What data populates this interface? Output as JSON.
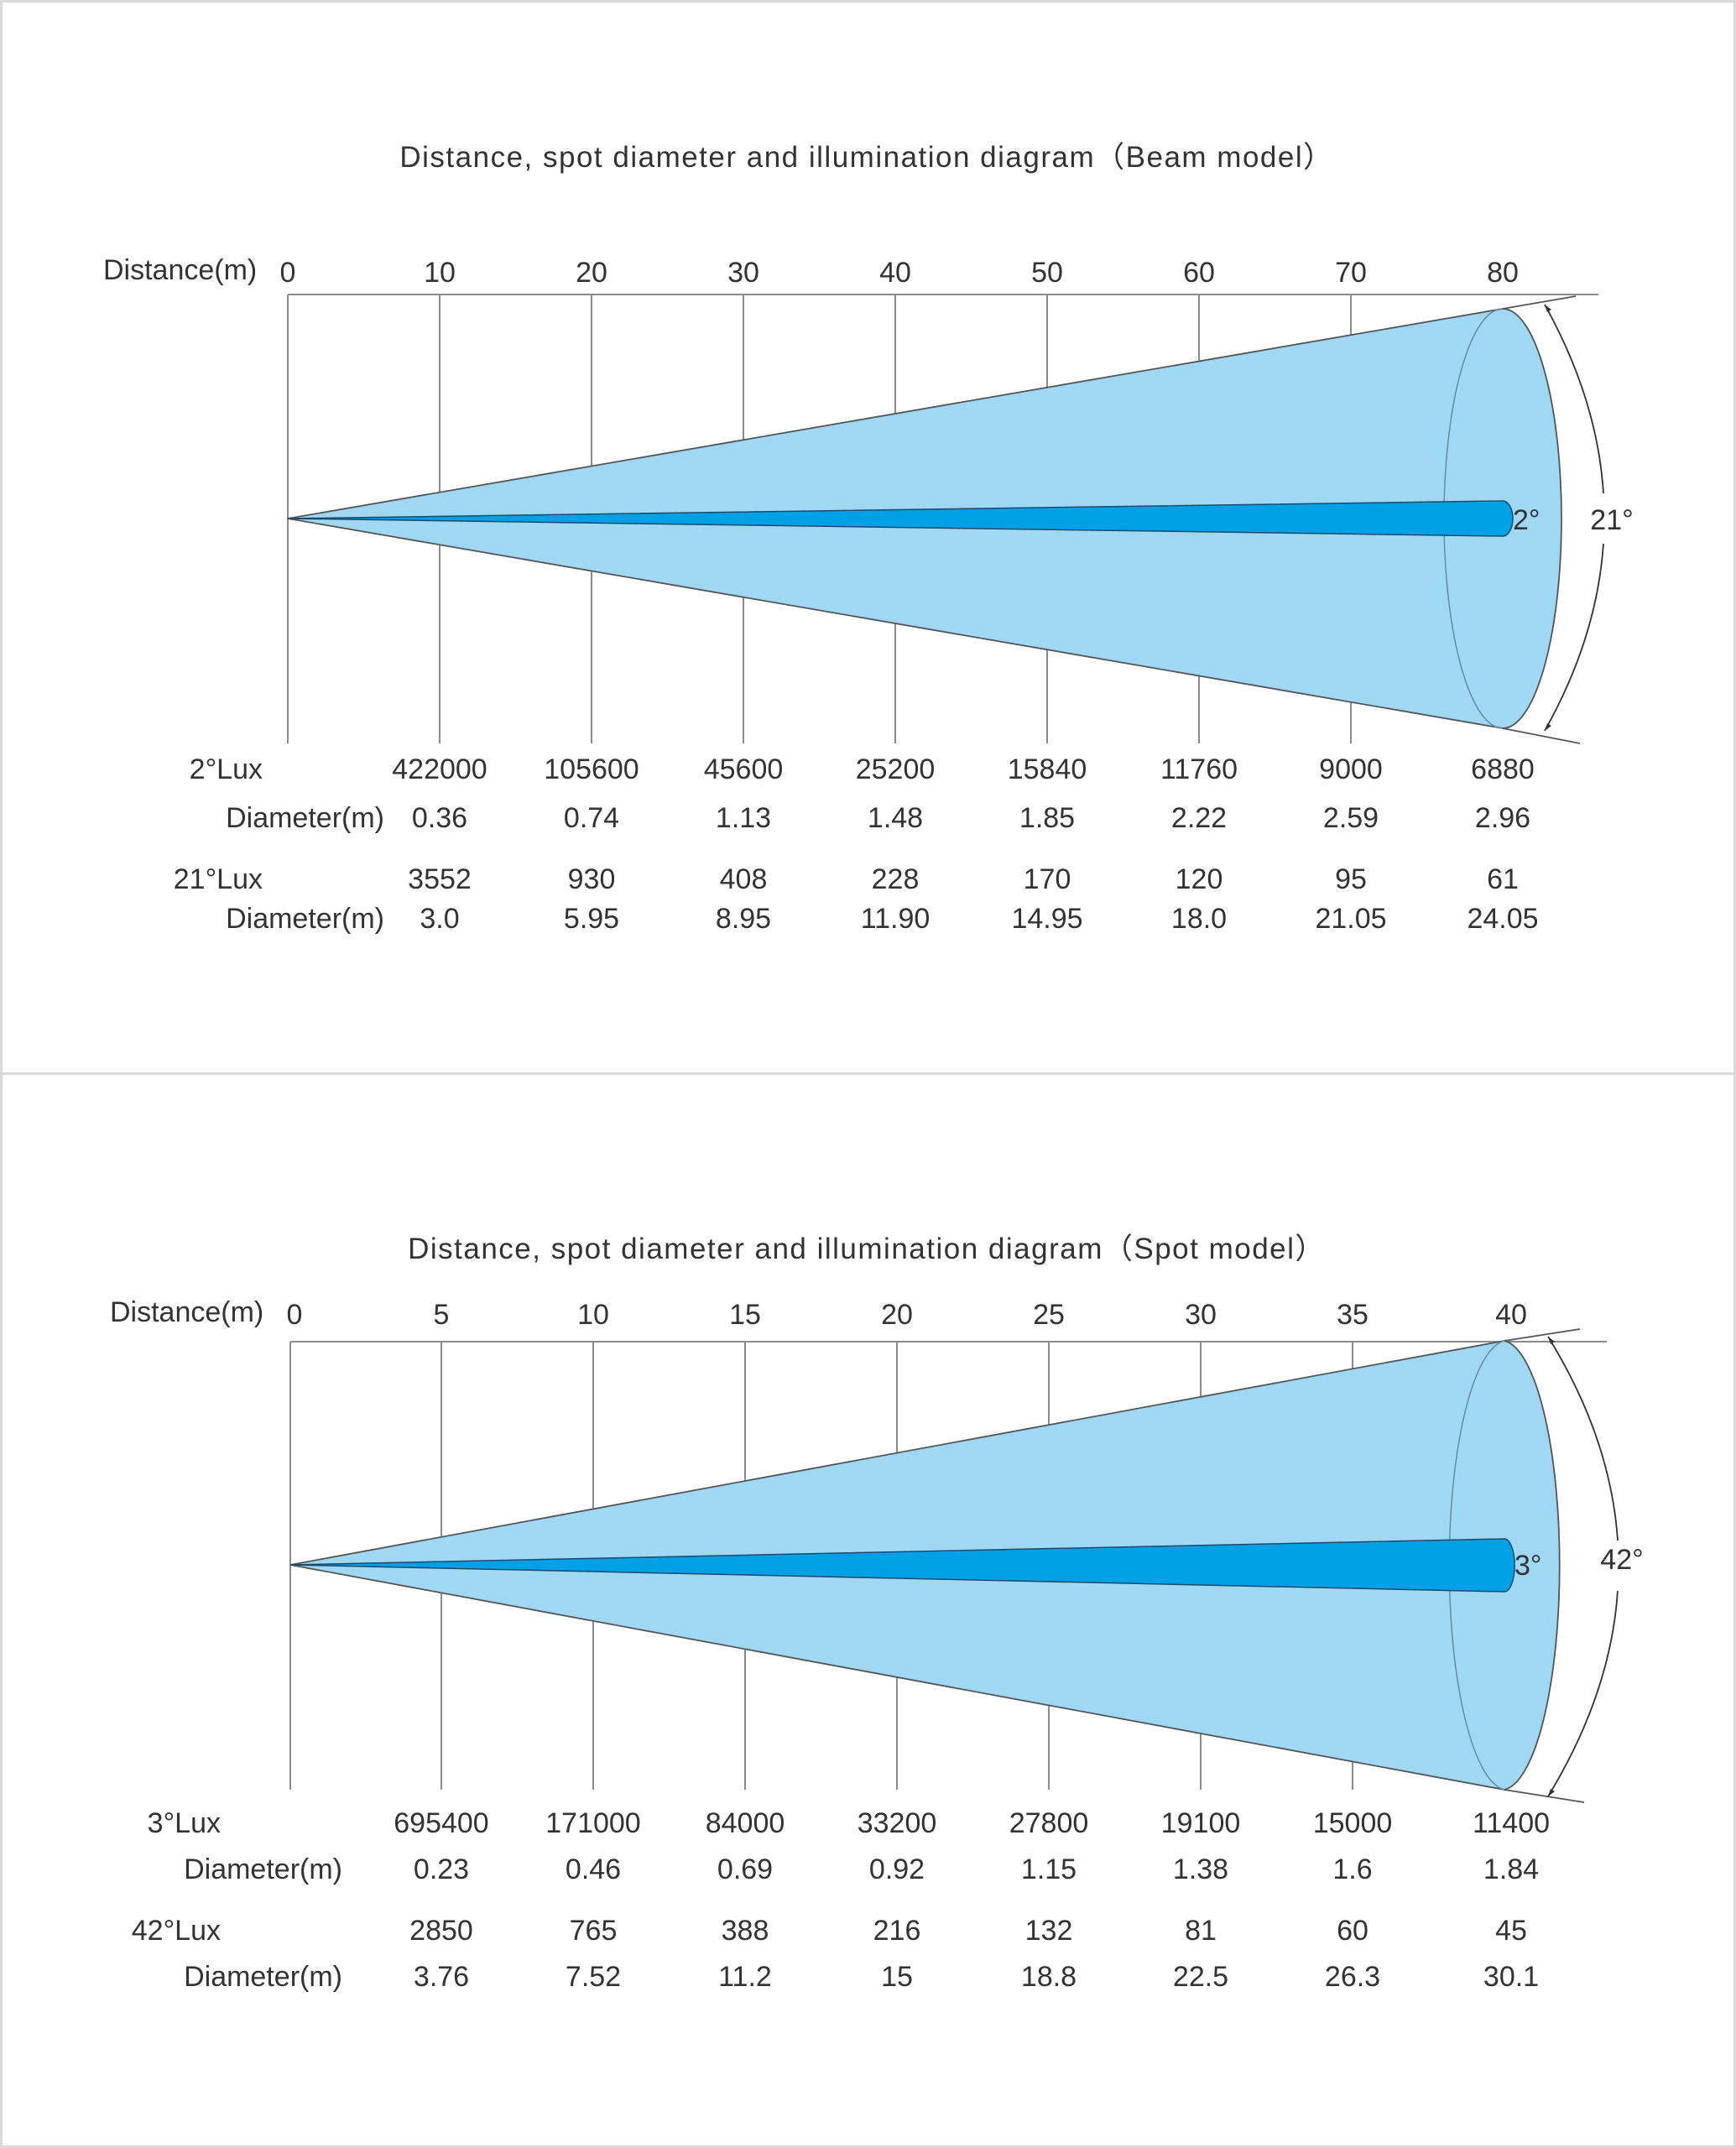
{
  "beam": {
    "title": "Distance, spot diameter and illumination diagram（Beam model）",
    "distance_label": "Distance(m)",
    "distances": [
      "0",
      "10",
      "20",
      "30",
      "40",
      "50",
      "60",
      "70",
      "80"
    ],
    "narrow_angle": "2°",
    "wide_angle": "21°",
    "rows": [
      {
        "label": "2°Lux",
        "values": [
          "422000",
          "105600",
          "45600",
          "25200",
          "15840",
          "11760",
          "9000",
          "6880"
        ]
      },
      {
        "label": "Diameter(m)",
        "values": [
          "0.36",
          "0.74",
          "1.13",
          "1.48",
          "1.85",
          "2.22",
          "2.59",
          "2.96"
        ]
      },
      {
        "label": "21°Lux",
        "values": [
          "3552",
          "930",
          "408",
          "228",
          "170",
          "120",
          "95",
          "61"
        ]
      },
      {
        "label": "Diameter(m)",
        "values": [
          "3.0",
          "5.95",
          "8.95",
          "11.90",
          "14.95",
          "18.0",
          "21.05",
          "24.05"
        ]
      }
    ]
  },
  "spot": {
    "title": "Distance, spot diameter and illumination diagram（Spot model）",
    "distance_label": "Distance(m)",
    "distances": [
      "0",
      "5",
      "10",
      "15",
      "20",
      "25",
      "30",
      "35",
      "40"
    ],
    "narrow_angle": "3°",
    "wide_angle": "42°",
    "rows": [
      {
        "label": "3°Lux",
        "values": [
          "695400",
          "171000",
          "84000",
          "33200",
          "27800",
          "19100",
          "15000",
          "11400"
        ]
      },
      {
        "label": "Diameter(m)",
        "values": [
          "0.23",
          "0.46",
          "0.69",
          "0.92",
          "1.15",
          "1.38",
          "1.6",
          "1.84"
        ]
      },
      {
        "label": "42°Lux",
        "values": [
          "2850",
          "765",
          "388",
          "216",
          "132",
          "81",
          "60",
          "45"
        ]
      },
      {
        "label": "Diameter(m)",
        "values": [
          "3.76",
          "7.52",
          "11.2",
          "15",
          "18.8",
          "22.5",
          "26.3",
          "30.1"
        ]
      }
    ]
  },
  "colors": {
    "wide_cone": "#a0d8f4",
    "narrow_beam": "#00a0e6",
    "lines": "#555555",
    "grid": "#8c8c8c"
  }
}
